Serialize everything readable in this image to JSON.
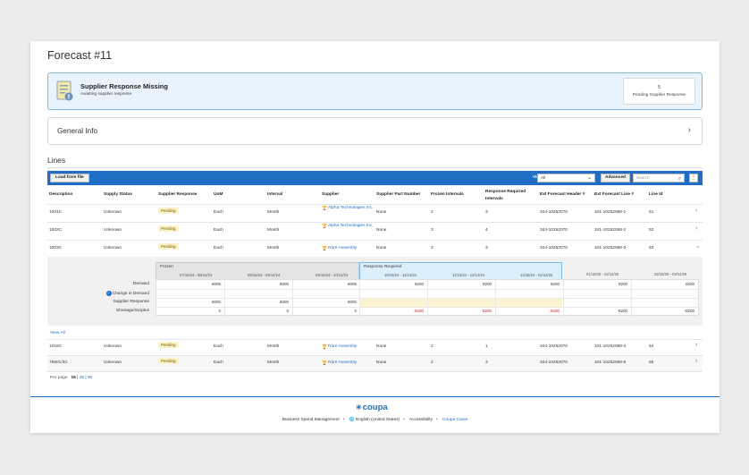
{
  "page": {
    "title": "Forecast #11"
  },
  "alert": {
    "title": "Supplier Response Missing",
    "subtitle": "Awaiting supplier response",
    "pending_count": "5",
    "pending_label": "Pending Supplier Response"
  },
  "general": {
    "title": "General Info"
  },
  "lines": {
    "title": "Lines",
    "toolbar": {
      "load_label": "Load from file",
      "view_label": "View",
      "view_value": "All",
      "advanced_label": "Advanced",
      "search_placeholder": "Search"
    },
    "columns": [
      "Description",
      "Supply Status",
      "Supplier Response",
      "UoM",
      "Interval",
      "Supplier",
      "Supplier Part Number",
      "Frozen Intervals",
      "Response Required Intervals",
      "Ext Forecast Header #",
      "Ext Forecast Line #",
      "Line Id"
    ],
    "rows": [
      {
        "description": "1001C",
        "status": "Unknown",
        "response": "Pending",
        "uom": "Each",
        "interval": "Month",
        "supplier": "Alpha Technologies Inc.",
        "part": "None",
        "frozen": "2",
        "required": "3",
        "header": "344-10252070",
        "line": "341-10252068-1",
        "line_id": "51"
      },
      {
        "description": "1002C",
        "status": "Unknown",
        "response": "Pending",
        "uom": "Each",
        "interval": "Month",
        "supplier": "Alpha Technologies Inc.",
        "part": "None",
        "frozen": "3",
        "required": "4",
        "header": "344-10252070",
        "line": "341-10252068-2",
        "line_id": "52"
      },
      {
        "description": "1003C",
        "status": "Unknown",
        "response": "Pending",
        "uom": "Each",
        "interval": "Month",
        "supplier": "Rare Assembly",
        "part": "None",
        "frozen": "3",
        "required": "3",
        "header": "344-10252070",
        "line": "341-10252068-3",
        "line_id": "53"
      },
      {
        "description": "1016C",
        "status": "Unknown",
        "response": "Pending",
        "uom": "Each",
        "interval": "Month",
        "supplier": "Rare Assembly",
        "part": "None",
        "frozen": "2",
        "required": "1",
        "header": "344-10252070",
        "line": "341-10252068-4",
        "line_id": "54"
      },
      {
        "description": "76601/3C",
        "status": "Unknown",
        "response": "Pending",
        "uom": "Each",
        "interval": "Month",
        "supplier": "Rare Assembly",
        "part": "None",
        "frozen": "2",
        "required": "3",
        "header": "344-10252070",
        "line": "341-10252068-5",
        "line_id": "55"
      }
    ],
    "detail": {
      "frozen_label": "Frozen",
      "response_label": "Response Required",
      "periods": [
        "07/15/24 - 08/14/24",
        "08/15/24 - 09/14/24",
        "09/15/24 - 10/14/24",
        "10/15/24 - 11/14/24",
        "11/15/24 - 12/14/24",
        "12/15/24 - 01/14/25",
        "01/15/25 - 02/14/25",
        "02/15/25 - 03/14/25"
      ],
      "row_labels": [
        "Demand",
        "Change in Demand",
        "Supplier Response",
        "Shortage/Surplus"
      ],
      "demand": [
        "8000",
        "8000",
        "8000",
        "8200",
        "8200",
        "8200",
        "8200",
        "8200"
      ],
      "supplier_response": [
        "8000",
        "8000",
        "8000"
      ],
      "shortage": [
        "0",
        "0",
        "0",
        "-8200",
        "-8200",
        "-8200",
        "-8200",
        "-8200"
      ]
    },
    "view_all": "View All",
    "per_page_label": "Per page",
    "per_page_options": [
      "15",
      "45",
      "90"
    ]
  },
  "footer": {
    "logo": "coupa",
    "links": [
      "Business Spend Management",
      "English (United States)",
      "Accessibility",
      "Coupa Cares"
    ]
  }
}
